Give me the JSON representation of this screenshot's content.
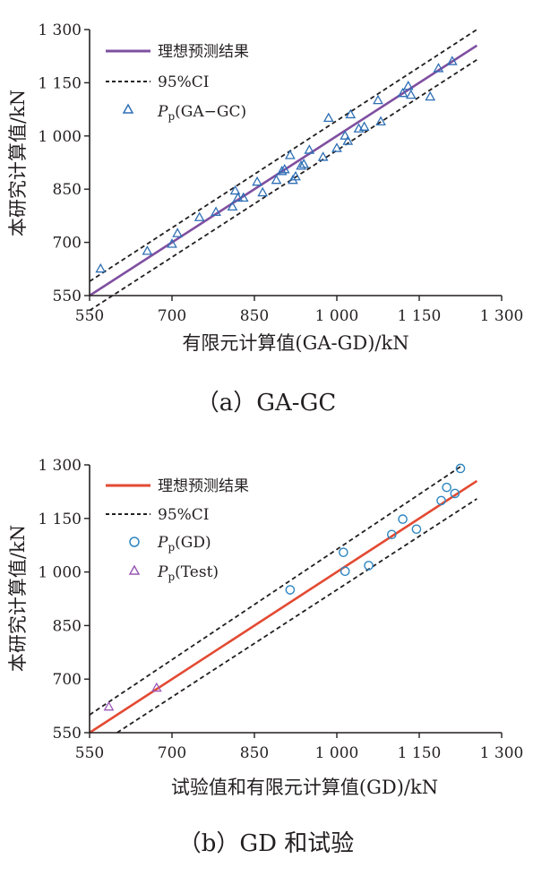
{
  "chart_data": [
    {
      "type": "scatter",
      "caption": "（a）GA-GC",
      "xlabel": "有限元计算值(GA-GD)/kN",
      "ylabel": "本研究计算值/kN",
      "xlim": [
        550,
        1300
      ],
      "ylim": [
        550,
        1300
      ],
      "x_ticks": [
        "550",
        "700",
        "850",
        "1 000",
        "1 150",
        "1 300"
      ],
      "y_ticks": [
        "550",
        "700",
        "850",
        "1 000",
        "1 150",
        "1 300"
      ],
      "grid": false,
      "legend_placement": "top-left",
      "ideal_line": {
        "label": "理想预测结果",
        "color": "#7f4fa0",
        "x": [
          550,
          1255
        ],
        "y": [
          550,
          1255
        ]
      },
      "ci_lines": {
        "label": "95%CI",
        "upper": {
          "x": [
            550,
            1255
          ],
          "y": [
            590,
            1300
          ]
        },
        "lower": {
          "x": [
            550,
            1255
          ],
          "y": [
            508,
            1215
          ]
        }
      },
      "series": [
        {
          "name_main": "P",
          "name_sub": "p",
          "name_tail": "(GA−GC)",
          "marker": "triangle",
          "color": "#2e6fb5",
          "points": [
            [
              570,
              625
            ],
            [
              655,
              675
            ],
            [
              700,
              695
            ],
            [
              710,
              725
            ],
            [
              750,
              770
            ],
            [
              780,
              785
            ],
            [
              810,
              800
            ],
            [
              815,
              845
            ],
            [
              820,
              825
            ],
            [
              830,
              825
            ],
            [
              855,
              870
            ],
            [
              865,
              840
            ],
            [
              890,
              875
            ],
            [
              900,
              900
            ],
            [
              905,
              905
            ],
            [
              915,
              945
            ],
            [
              920,
              875
            ],
            [
              925,
              885
            ],
            [
              935,
              915
            ],
            [
              940,
              920
            ],
            [
              950,
              960
            ],
            [
              975,
              940
            ],
            [
              985,
              1050
            ],
            [
              1000,
              965
            ],
            [
              1015,
              1000
            ],
            [
              1020,
              985
            ],
            [
              1025,
              1060
            ],
            [
              1040,
              1020
            ],
            [
              1050,
              1025
            ],
            [
              1075,
              1100
            ],
            [
              1080,
              1040
            ],
            [
              1120,
              1120
            ],
            [
              1130,
              1140
            ],
            [
              1135,
              1115
            ],
            [
              1170,
              1110
            ],
            [
              1185,
              1190
            ],
            [
              1210,
              1210
            ]
          ]
        }
      ]
    },
    {
      "type": "scatter",
      "caption": "（b）GD 和试验",
      "xlabel": "试验值和有限元计算值(GD)/kN",
      "ylabel": "本研究计算值/kN",
      "xlim": [
        550,
        1300
      ],
      "ylim": [
        550,
        1300
      ],
      "x_ticks": [
        "550",
        "700",
        "850",
        "1 000",
        "1 150",
        "1 300"
      ],
      "y_ticks": [
        "550",
        "700",
        "850",
        "1 000",
        "1 150",
        "1 300"
      ],
      "grid": false,
      "legend_placement": "top-left",
      "ideal_line": {
        "label": "理想预测结果",
        "color": "#e34a33",
        "x": [
          550,
          1255
        ],
        "y": [
          550,
          1255
        ]
      },
      "ci_lines": {
        "label": "95%CI",
        "upper": {
          "x": [
            550,
            1230
          ],
          "y": [
            600,
            1300
          ]
        },
        "lower": {
          "x": [
            600,
            1255
          ],
          "y": [
            550,
            1205
          ]
        }
      },
      "series": [
        {
          "name_main": "P",
          "name_sub": "p",
          "name_tail": "(GD)",
          "marker": "circle",
          "color": "#2e86c1",
          "points": [
            [
              915,
              950
            ],
            [
              1012,
              1055
            ],
            [
              1015,
              1002
            ],
            [
              1058,
              1018
            ],
            [
              1100,
              1105
            ],
            [
              1120,
              1148
            ],
            [
              1145,
              1120
            ],
            [
              1190,
              1200
            ],
            [
              1200,
              1237
            ],
            [
              1215,
              1220
            ],
            [
              1225,
              1290
            ]
          ]
        },
        {
          "name_main": "P",
          "name_sub": "p",
          "name_tail": "(Test)",
          "marker": "triangle",
          "color": "#9b59b6",
          "points": [
            [
              585,
              622
            ],
            [
              672,
              675
            ]
          ]
        }
      ]
    }
  ]
}
